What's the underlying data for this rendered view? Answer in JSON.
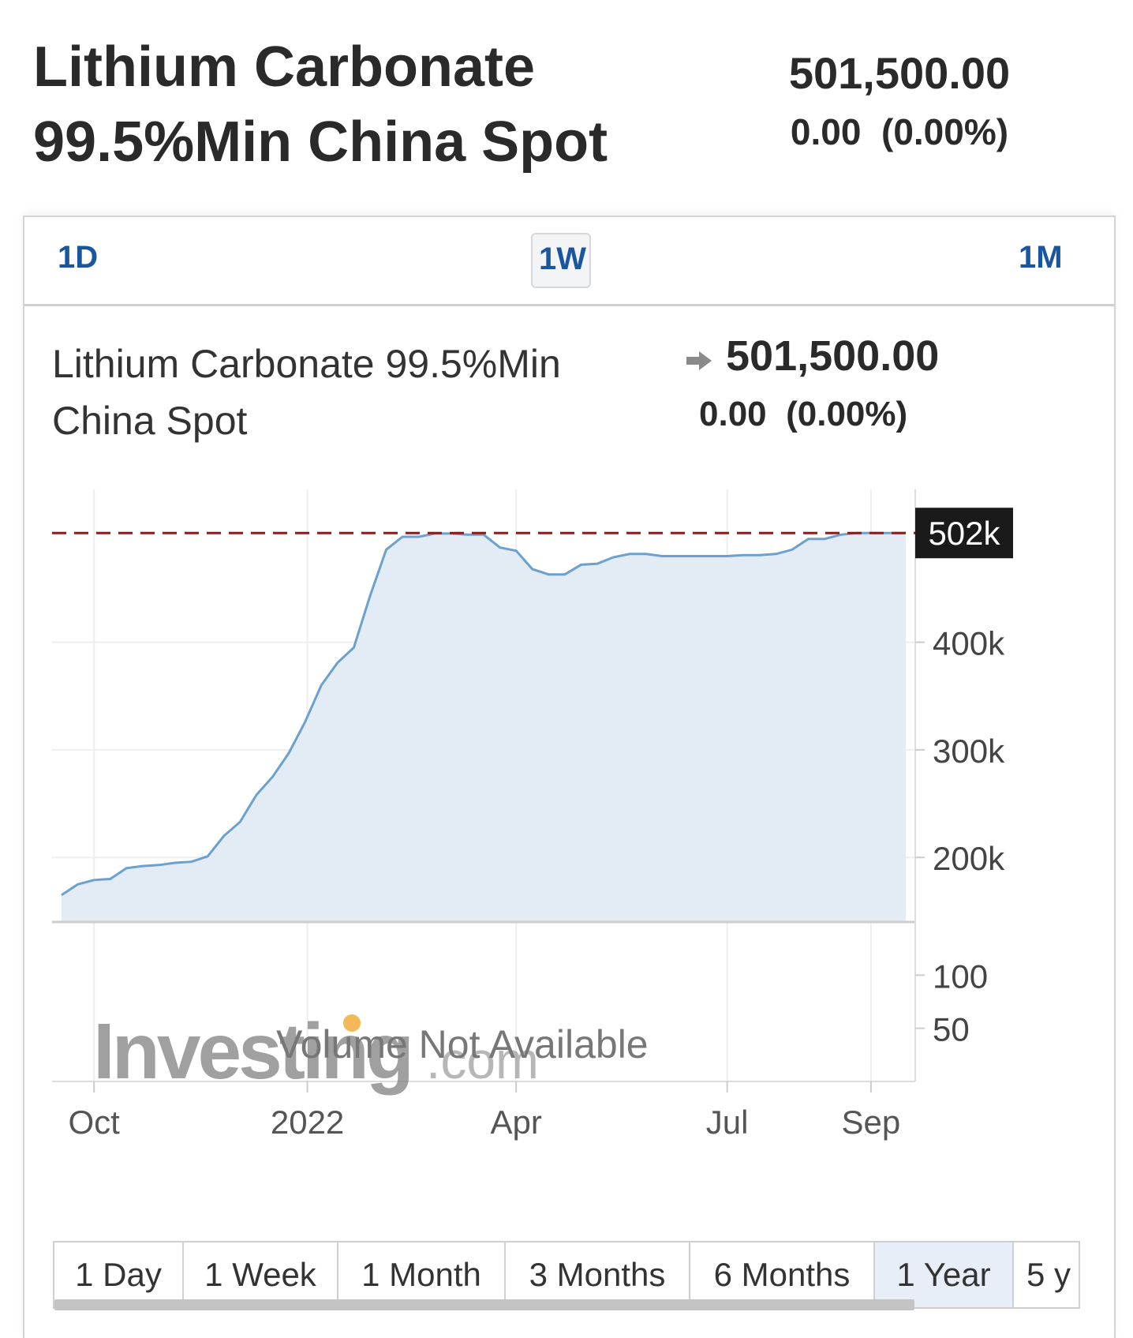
{
  "header": {
    "title_line1": "Lithium Carbonate",
    "title_line2": "99.5%Min China Spot",
    "price": "501,500.00",
    "change": "0.00",
    "change_pct": "(0.00%)"
  },
  "range_tabs": [
    {
      "label": "1D",
      "selected": false
    },
    {
      "label": "1W",
      "selected": true
    },
    {
      "label": "1M",
      "selected": false
    }
  ],
  "instrument": {
    "name_line1": "Lithium Carbonate 99.5%Min",
    "name_line2": "China Spot",
    "arrow_icon": "right-arrow-icon",
    "price": "501,500.00",
    "change": "0.00",
    "change_pct": "(0.00%)"
  },
  "watermark": {
    "brand": "Investing",
    "suffix": ".com",
    "volume_note": "Volume Not Available"
  },
  "period_tabs": [
    {
      "label": "1 Day",
      "selected": false
    },
    {
      "label": "1 Week",
      "selected": false
    },
    {
      "label": "1 Month",
      "selected": false
    },
    {
      "label": "3 Months",
      "selected": false
    },
    {
      "label": "6 Months",
      "selected": false
    },
    {
      "label": "1 Year",
      "selected": true
    },
    {
      "label": "5 y",
      "selected": false
    }
  ],
  "colors": {
    "accent": "#1a56a0",
    "line": "#6ca0cf",
    "area": "#e3ecf5",
    "current_price_line": "#8b1c1c",
    "current_price_label_bg": "#1a1a1a"
  },
  "chart_data": {
    "type": "area",
    "x_tick_labels": [
      "Oct",
      "2022",
      "Apr",
      "Jul",
      "Sep"
    ],
    "y_tick_labels": [
      "400k",
      "300k",
      "200k"
    ],
    "volume_tick_labels": [
      "100",
      "50"
    ],
    "current_value_label": "502k",
    "current_value": 501500,
    "ylim": [
      140000,
      520000
    ],
    "volume_ylim": [
      0,
      150
    ],
    "grid": true,
    "series": [
      {
        "x": [
          "2021-09-17",
          "2021-09-24",
          "2021-10-01",
          "2021-10-08",
          "2021-10-15",
          "2021-10-22",
          "2021-10-29",
          "2021-11-05",
          "2021-11-12",
          "2021-11-19",
          "2021-11-26",
          "2021-12-03",
          "2021-12-10",
          "2021-12-17",
          "2021-12-24",
          "2021-12-31",
          "2022-01-07",
          "2022-01-14",
          "2022-01-21",
          "2022-01-28",
          "2022-02-04",
          "2022-02-11",
          "2022-02-18",
          "2022-02-25",
          "2022-03-04",
          "2022-03-11",
          "2022-03-18",
          "2022-03-25",
          "2022-04-01",
          "2022-04-08",
          "2022-04-15",
          "2022-04-22",
          "2022-04-29",
          "2022-05-06",
          "2022-05-13",
          "2022-05-20",
          "2022-05-27",
          "2022-06-03",
          "2022-06-10",
          "2022-06-17",
          "2022-06-24",
          "2022-07-01",
          "2022-07-08",
          "2022-07-15",
          "2022-07-22",
          "2022-07-29",
          "2022-08-05",
          "2022-08-12",
          "2022-08-19",
          "2022-08-26",
          "2022-09-02",
          "2022-09-09",
          "2022-09-16"
        ],
        "values": [
          165000,
          175000,
          179000,
          180000,
          190000,
          192000,
          193000,
          195000,
          196000,
          201000,
          220000,
          233000,
          258000,
          275000,
          297000,
          326000,
          360000,
          381000,
          395000,
          443000,
          486000,
          498000,
          498000,
          501000,
          501000,
          500000,
          500000,
          488000,
          485000,
          468000,
          463000,
          463000,
          472000,
          473000,
          479000,
          482000,
          482000,
          480000,
          480000,
          480000,
          480000,
          480000,
          481000,
          481000,
          482000,
          486000,
          496000,
          496000,
          500000,
          501500,
          501500,
          501500,
          501500
        ]
      }
    ]
  }
}
